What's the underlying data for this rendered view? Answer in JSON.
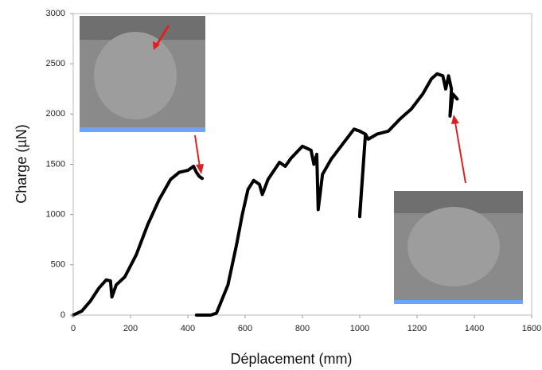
{
  "chart_data": {
    "type": "line",
    "x_label": "Déplacement (mm)",
    "y_label": "Charge (µN)",
    "x": [
      0,
      30,
      60,
      90,
      115,
      130,
      135,
      150,
      180,
      220,
      260,
      300,
      340,
      370,
      400,
      420,
      430,
      440,
      450,
      null,
      430,
      480,
      500,
      540,
      570,
      590,
      610,
      630,
      650,
      660,
      680,
      720,
      740,
      760,
      800,
      830,
      840,
      850,
      855,
      870,
      900,
      940,
      980,
      1000,
      1020,
      1000,
      1000,
      1020,
      1030,
      1060,
      1100,
      1140,
      1180,
      1220,
      1250,
      1270,
      1290,
      1300,
      1310,
      1320,
      1315,
      1325,
      1340
    ],
    "series": [
      {
        "color": "#000000",
        "values": [
          0,
          40,
          140,
          270,
          350,
          340,
          180,
          300,
          380,
          600,
          900,
          1150,
          1350,
          1420,
          1440,
          1480,
          1420,
          1380,
          1360,
          null,
          0,
          0,
          20,
          300,
          700,
          1000,
          1250,
          1340,
          1300,
          1200,
          1350,
          1520,
          1480,
          1560,
          1680,
          1640,
          1500,
          1600,
          1050,
          1400,
          1550,
          1700,
          1850,
          1830,
          1800,
          980,
          1000,
          1800,
          1750,
          1800,
          1830,
          1950,
          2050,
          2200,
          2350,
          2400,
          2380,
          2250,
          2380,
          2250,
          1980,
          2200,
          2150
        ]
      }
    ],
    "xlim": [
      0,
      1600
    ],
    "xticks": [
      0,
      200,
      400,
      600,
      800,
      1000,
      1200,
      1400,
      1600
    ],
    "ylim": [
      0,
      3000
    ],
    "yticks": [
      0,
      500,
      1000,
      1500,
      2000,
      2500,
      3000
    ]
  }
}
